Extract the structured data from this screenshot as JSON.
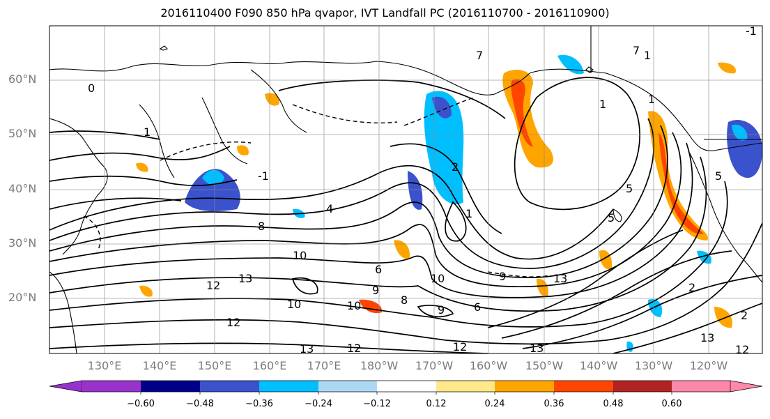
{
  "title": "2016110400 F090 850 hPa qvapor, IVT Landfall PC (2016110700 - 2016110900)",
  "map": {
    "lat_labels": [
      "60°N",
      "50°N",
      "40°N",
      "30°N",
      "20°N"
    ],
    "lon_labels": [
      "130°E",
      "140°E",
      "150°E",
      "160°E",
      "170°E",
      "180°W",
      "170°W",
      "160°W",
      "150°W",
      "140°W",
      "130°W",
      "120°W"
    ],
    "contour_labels": [
      "0",
      "1",
      "1",
      "-1",
      "-1",
      "2",
      "1",
      "1",
      "4",
      "5",
      "5",
      "5",
      "8",
      "6",
      "10",
      "10",
      "9",
      "9",
      "10",
      "12",
      "13",
      "12",
      "13",
      "10",
      "13",
      "12",
      "12",
      "13",
      "13",
      "12",
      "2",
      "1",
      "7",
      "7",
      "2",
      "6",
      "9",
      "8"
    ],
    "grid": true,
    "projection": "cylindrical"
  },
  "colorbar": {
    "colors": [
      "#9932cc",
      "#00008b",
      "#3a52cc",
      "#00bfff",
      "#add8f5",
      "#ffffff",
      "#ffe88a",
      "#ffa500",
      "#ff4500",
      "#b22222",
      "#ff88aa"
    ],
    "tick_labels": [
      "−0.60",
      "−0.48",
      "−0.36",
      "−0.24",
      "−0.12",
      "0.12",
      "0.24",
      "0.36",
      "0.48",
      "0.60"
    ],
    "extend": "both"
  }
}
